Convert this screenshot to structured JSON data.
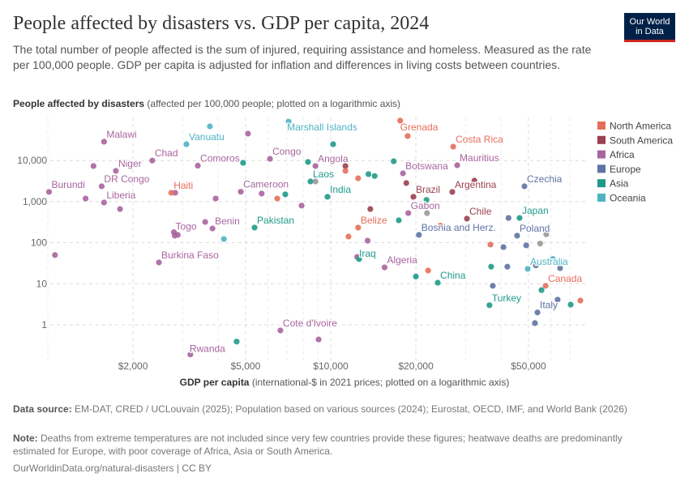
{
  "header": {
    "title": "People affected by disasters vs. GDP per capita, 2024",
    "subtitle": "The total number of people affected is the sum of injured, requiring assistance and homeless. Measured as the rate per 100,000 people. GDP per capita is adjusted for inflation and differences in living costs between countries.",
    "logo_line1": "Our World",
    "logo_line2": "in Data"
  },
  "footer": {
    "source_label": "Data source:",
    "source": "EM-DAT, CRED / UCLouvain (2025); Population based on various sources (2024); Eurostat, OECD, IMF, and World Bank (2026)",
    "note_label": "Note:",
    "note": "Deaths from extreme temperatures are not included since very few countries provide these figures; heatwave deaths are predominantly estimated for Europe, with poor coverage of Africa, Asia or South America.",
    "credit": "OurWorldinData.org/natural-disasters | CC BY"
  },
  "chart_data": {
    "type": "scatter",
    "title": "People affected by disasters vs. GDP per capita, 2024",
    "ylabel_bold": "People affected by disasters",
    "ylabel_rest": " (affected per 100,000 people; plotted on a logarithmic axis)",
    "xlabel_bold": "GDP per capita",
    "xlabel_rest": " (international-$ in 2021 prices; plotted on a logarithmic axis)",
    "x_scale": "log",
    "y_scale": "log",
    "xlim": [
      975,
      78000
    ],
    "ylim": [
      0.15,
      100000
    ],
    "x_ticks": [
      {
        "v": 2000,
        "label": "$2,000"
      },
      {
        "v": 5000,
        "label": "$5,000"
      },
      {
        "v": 10000,
        "label": "$10,000"
      },
      {
        "v": 20000,
        "label": "$20,000"
      },
      {
        "v": 50000,
        "label": "$50,000"
      }
    ],
    "y_ticks": [
      {
        "v": 1,
        "label": "1"
      },
      {
        "v": 10,
        "label": "10"
      },
      {
        "v": 100,
        "label": "100"
      },
      {
        "v": 1000,
        "label": "1,000"
      },
      {
        "v": 10000,
        "label": "10,000"
      }
    ],
    "grid": true,
    "legend_position": "right",
    "legend": [
      {
        "name": "North America",
        "color": "#e56e5a"
      },
      {
        "name": "South America",
        "color": "#9a4050"
      },
      {
        "name": "Africa",
        "color": "#a8649f"
      },
      {
        "name": "Europe",
        "color": "#5f72a3"
      },
      {
        "name": "Asia",
        "color": "#1f9a8a"
      },
      {
        "name": "Oceania",
        "color": "#4fb3c4"
      }
    ],
    "other_color": "#999999",
    "points": [
      {
        "label": "Malawi",
        "region": "Africa",
        "x": 1580,
        "y": 28800
      },
      {
        "label": "",
        "region": "Africa",
        "x": 1450,
        "y": 7350
      },
      {
        "label": "Niger",
        "region": "Africa",
        "x": 1740,
        "y": 5600
      },
      {
        "label": "Burundi",
        "region": "Africa",
        "x": 1010,
        "y": 1720
      },
      {
        "label": "DR Congo",
        "region": "Africa",
        "x": 1550,
        "y": 2360
      },
      {
        "label": "",
        "region": "Africa",
        "x": 1360,
        "y": 1190
      },
      {
        "label": "Liberia",
        "region": "Africa",
        "x": 1580,
        "y": 950
      },
      {
        "label": "",
        "region": "Africa",
        "x": 1800,
        "y": 660
      },
      {
        "label": "Chad",
        "region": "Africa",
        "x": 2340,
        "y": 10000
      },
      {
        "label": "Comoros",
        "region": "Africa",
        "x": 3390,
        "y": 7500
      },
      {
        "label": "",
        "region": "Africa",
        "x": 2820,
        "y": 1640
      },
      {
        "label": "",
        "region": "Africa",
        "x": 3920,
        "y": 1190
      },
      {
        "label": "",
        "region": "Africa",
        "x": 5100,
        "y": 45200
      },
      {
        "label": "Congo",
        "region": "Africa",
        "x": 6100,
        "y": 11000
      },
      {
        "label": "Cameroon",
        "region": "Africa",
        "x": 4810,
        "y": 1740
      },
      {
        "label": "",
        "region": "Africa",
        "x": 5700,
        "y": 1570
      },
      {
        "label": "",
        "region": "Africa",
        "x": 7890,
        "y": 800
      },
      {
        "label": "Angola",
        "region": "Africa",
        "x": 8830,
        "y": 7350
      },
      {
        "label": "Benin",
        "region": "Africa",
        "x": 3820,
        "y": 222
      },
      {
        "label": "",
        "region": "Africa",
        "x": 3600,
        "y": 320
      },
      {
        "label": "Togo",
        "region": "Africa",
        "x": 2790,
        "y": 180
      },
      {
        "label": "",
        "region": "Africa",
        "x": 2810,
        "y": 148
      },
      {
        "label": "",
        "region": "Africa",
        "x": 2880,
        "y": 155
      },
      {
        "label": "",
        "region": "Africa",
        "x": 1060,
        "y": 50
      },
      {
        "label": "Burkina Faso",
        "region": "Africa",
        "x": 2470,
        "y": 33
      },
      {
        "label": "Rwanda",
        "region": "Africa",
        "x": 3190,
        "y": 0.19
      },
      {
        "label": "Cote d'Ivoire",
        "region": "Africa",
        "x": 6640,
        "y": 0.73
      },
      {
        "label": "",
        "region": "Africa",
        "x": 9060,
        "y": 0.44
      },
      {
        "label": "Botswana",
        "region": "Africa",
        "x": 18000,
        "y": 4880
      },
      {
        "label": "Mauritius",
        "region": "Africa",
        "x": 28000,
        "y": 7690
      },
      {
        "label": "Gabon",
        "region": "Africa",
        "x": 18800,
        "y": 525
      },
      {
        "label": "Algeria",
        "region": "Africa",
        "x": 15500,
        "y": 25
      },
      {
        "label": "",
        "region": "Africa",
        "x": 12400,
        "y": 45
      },
      {
        "label": "",
        "region": "Africa",
        "x": 13500,
        "y": 112
      },
      {
        "label": "Pakistan",
        "region": "Asia",
        "x": 5380,
        "y": 233
      },
      {
        "label": "",
        "region": "Asia",
        "x": 4900,
        "y": 8810
      },
      {
        "label": "",
        "region": "Asia",
        "x": 6910,
        "y": 1500
      },
      {
        "label": "",
        "region": "Asia",
        "x": 8310,
        "y": 9220
      },
      {
        "label": "",
        "region": "Asia",
        "x": 10200,
        "y": 25000
      },
      {
        "label": "Laos",
        "region": "Asia",
        "x": 8480,
        "y": 3100
      },
      {
        "label": "India",
        "region": "Asia",
        "x": 9740,
        "y": 1310
      },
      {
        "label": "",
        "region": "Asia",
        "x": 13600,
        "y": 4670
      },
      {
        "label": "",
        "region": "Asia",
        "x": 14300,
        "y": 4200
      },
      {
        "label": "",
        "region": "Asia",
        "x": 16700,
        "y": 9600
      },
      {
        "label": "",
        "region": "Asia",
        "x": 17400,
        "y": 350
      },
      {
        "label": "",
        "region": "Asia",
        "x": 21800,
        "y": 1100
      },
      {
        "label": "Iraq",
        "region": "Asia",
        "x": 12600,
        "y": 40
      },
      {
        "label": "",
        "region": "Asia",
        "x": 20000,
        "y": 15
      },
      {
        "label": "China",
        "region": "Asia",
        "x": 23900,
        "y": 10.6
      },
      {
        "label": "Japan",
        "region": "Asia",
        "x": 46500,
        "y": 400
      },
      {
        "label": "",
        "region": "Asia",
        "x": 36900,
        "y": 26
      },
      {
        "label": "Turkey",
        "region": "Asia",
        "x": 36400,
        "y": 3.0
      },
      {
        "label": "",
        "region": "Asia",
        "x": 55600,
        "y": 7.0
      },
      {
        "label": "",
        "region": "Asia",
        "x": 70500,
        "y": 3.1
      },
      {
        "label": "",
        "region": "Asia",
        "x": 4650,
        "y": 0.39
      },
      {
        "label": "Brazil",
        "region": "South America",
        "x": 19600,
        "y": 1310
      },
      {
        "label": "",
        "region": "South America",
        "x": 18500,
        "y": 2830
      },
      {
        "label": "Argentina",
        "region": "South America",
        "x": 26900,
        "y": 1720
      },
      {
        "label": "",
        "region": "South America",
        "x": 32200,
        "y": 3240
      },
      {
        "label": "Chile",
        "region": "South America",
        "x": 30300,
        "y": 384
      },
      {
        "label": "",
        "region": "South America",
        "x": 11270,
        "y": 7350
      },
      {
        "label": "",
        "region": "South America",
        "x": 13800,
        "y": 660
      },
      {
        "label": "Grenada",
        "region": "North America",
        "x": 17600,
        "y": 93800
      },
      {
        "label": "",
        "region": "North America",
        "x": 18700,
        "y": 39500
      },
      {
        "label": "Costa Rica",
        "region": "North America",
        "x": 27100,
        "y": 21800
      },
      {
        "label": "",
        "region": "North America",
        "x": 11270,
        "y": 5600
      },
      {
        "label": "",
        "region": "North America",
        "x": 12500,
        "y": 3700
      },
      {
        "label": "Haiti",
        "region": "North America",
        "x": 2730,
        "y": 1640
      },
      {
        "label": "",
        "region": "North America",
        "x": 6470,
        "y": 1190
      },
      {
        "label": "Belize",
        "region": "North America",
        "x": 12500,
        "y": 233
      },
      {
        "label": "",
        "region": "North America",
        "x": 11560,
        "y": 141
      },
      {
        "label": "",
        "region": "North America",
        "x": 22100,
        "y": 21
      },
      {
        "label": "",
        "region": "North America",
        "x": 36700,
        "y": 90
      },
      {
        "label": "",
        "region": "North America",
        "x": 24400,
        "y": 260
      },
      {
        "label": "Canada",
        "region": "North America",
        "x": 57500,
        "y": 8.9
      },
      {
        "label": "",
        "region": "North America",
        "x": 76300,
        "y": 3.9
      },
      {
        "label": "Czechia",
        "region": "Europe",
        "x": 48400,
        "y": 2360
      },
      {
        "label": "Poland",
        "region": "Europe",
        "x": 45600,
        "y": 148
      },
      {
        "label": "",
        "region": "Europe",
        "x": 42500,
        "y": 400
      },
      {
        "label": "Bosnia and Herz.",
        "region": "Europe",
        "x": 20500,
        "y": 155
      },
      {
        "label": "",
        "region": "Europe",
        "x": 40800,
        "y": 78
      },
      {
        "label": "",
        "region": "Europe",
        "x": 49100,
        "y": 86
      },
      {
        "label": "",
        "region": "Europe",
        "x": 53100,
        "y": 28
      },
      {
        "label": "",
        "region": "Europe",
        "x": 42100,
        "y": 26
      },
      {
        "label": "",
        "region": "Europe",
        "x": 64700,
        "y": 24
      },
      {
        "label": "Italy",
        "region": "Europe",
        "x": 53800,
        "y": 2.0
      },
      {
        "label": "",
        "region": "Europe",
        "x": 52700,
        "y": 1.1
      },
      {
        "label": "",
        "region": "Europe",
        "x": 63400,
        "y": 4.1
      },
      {
        "label": "",
        "region": "Europe",
        "x": 37400,
        "y": 8.9
      },
      {
        "label": "Vanuatu",
        "region": "Oceania",
        "x": 3090,
        "y": 25000
      },
      {
        "label": "",
        "region": "Oceania",
        "x": 3740,
        "y": 68000
      },
      {
        "label": "Marshall Islands",
        "region": "Oceania",
        "x": 7100,
        "y": 89000
      },
      {
        "label": "",
        "region": "Oceania",
        "x": 4190,
        "y": 123
      },
      {
        "label": "Australia",
        "region": "Oceania",
        "x": 49700,
        "y": 23
      },
      {
        "label": "",
        "region": "Oceania",
        "x": 61000,
        "y": 40
      },
      {
        "label": "",
        "region": "",
        "x": 8830,
        "y": 3100
      },
      {
        "label": "",
        "region": "",
        "x": 21900,
        "y": 525
      },
      {
        "label": "",
        "region": "",
        "x": 57800,
        "y": 160
      },
      {
        "label": "",
        "region": "",
        "x": 55000,
        "y": 95
      }
    ]
  }
}
